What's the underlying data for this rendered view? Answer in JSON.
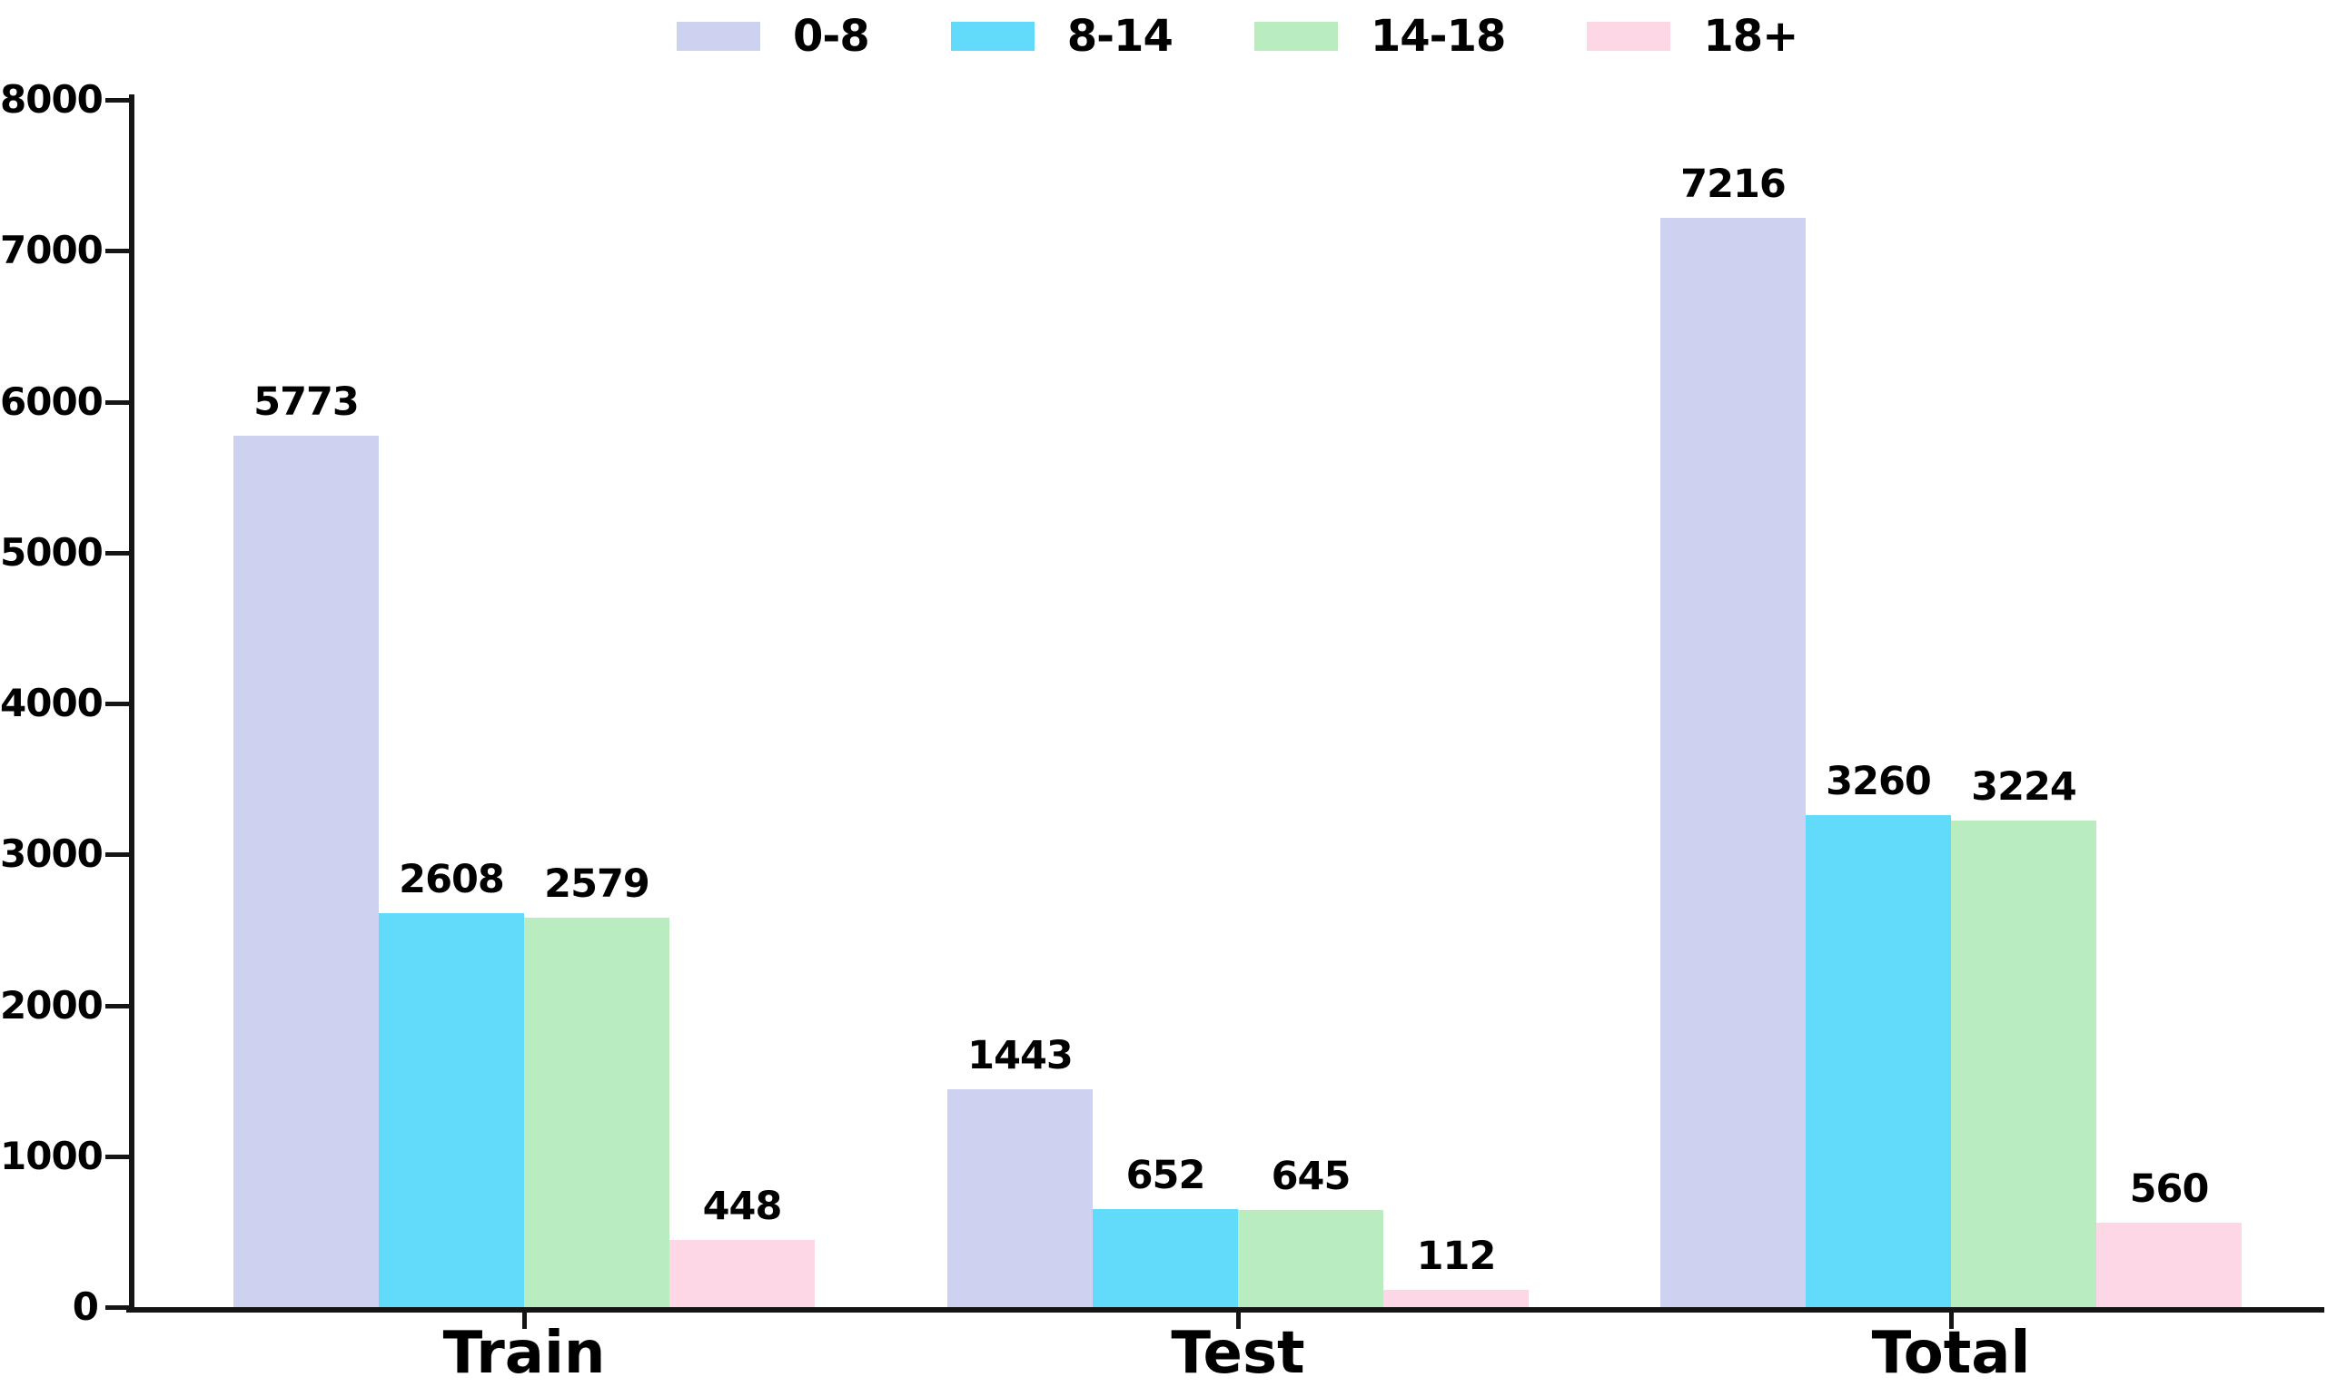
{
  "chart_data": {
    "type": "bar",
    "title": "",
    "categories": [
      "Train",
      "Test",
      "Total"
    ],
    "series": [
      {
        "name": "0-8",
        "color": "#cdd2f1",
        "values": [
          5773,
          1443,
          7216
        ]
      },
      {
        "name": "8-14",
        "color": "#61dbf9",
        "values": [
          2608,
          652,
          3260
        ]
      },
      {
        "name": "14-18",
        "color": "#b9ecbf",
        "values": [
          2579,
          645,
          3224
        ]
      },
      {
        "name": "18+",
        "color": "#fdd7e6",
        "values": [
          448,
          112,
          560
        ]
      }
    ],
    "xlabel": "",
    "ylabel": "",
    "ylim": [
      0,
      8000
    ],
    "yticks": [
      0,
      1000,
      2000,
      3000,
      4000,
      5000,
      6000,
      7000,
      8000
    ],
    "grid": false,
    "legend_position": "top",
    "bar_value_labels": true,
    "text_color": "#000000",
    "axis_color": "#151515",
    "background_color": "#ffffff"
  }
}
